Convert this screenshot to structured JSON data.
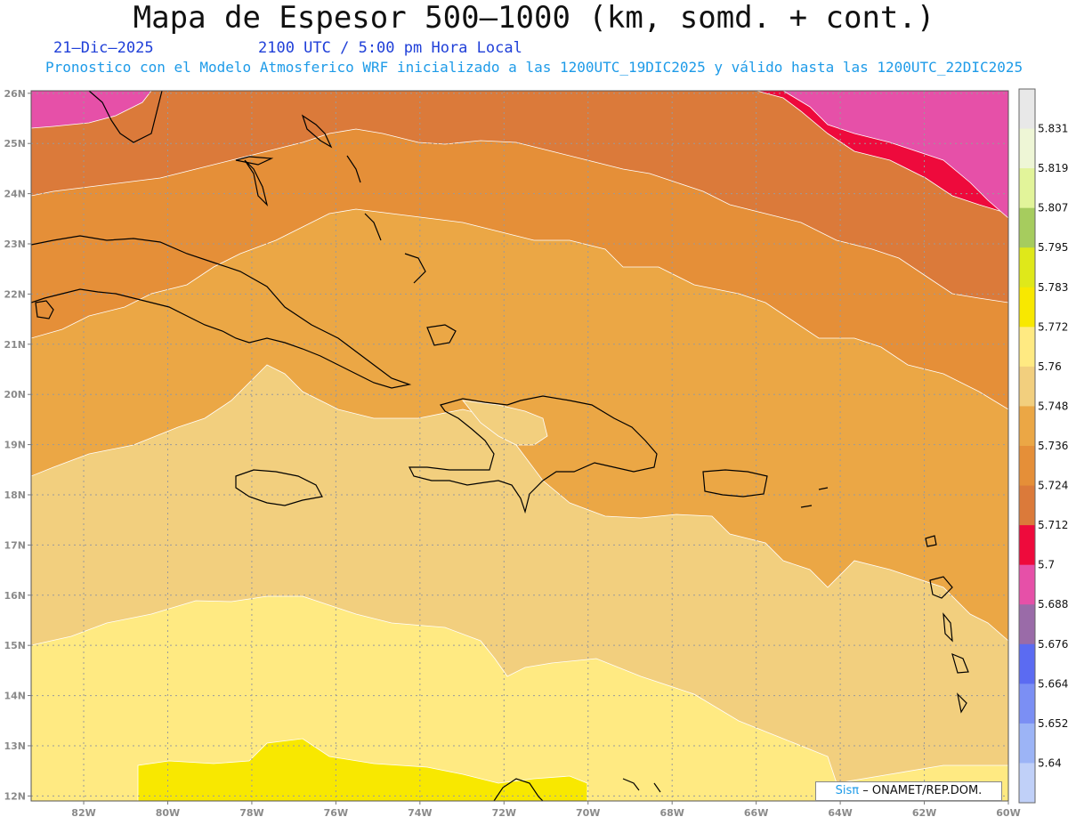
{
  "header": {
    "title": "Mapa de Espesor 500–1000 (km, somd. + cont.)",
    "date": "21–Dic–2025",
    "time": "2100 UTC / 5:00 pm Hora Local",
    "subtitle": "Pronostico con el Modelo Atmosferico WRF inicializado a las 1200UTC_19DIC2025 y válido hasta las  1200UTC_22DIC2025"
  },
  "map": {
    "lat_labels": [
      "26N",
      "25N",
      "24N",
      "23N",
      "22N",
      "21N",
      "20N",
      "19N",
      "18N",
      "17N",
      "16N",
      "15N",
      "14N",
      "13N",
      "12N"
    ],
    "lon_labels": [
      "82W",
      "80W",
      "78W",
      "76W",
      "74W",
      "72W",
      "70W",
      "68W",
      "66W",
      "64W",
      "62W",
      "60W"
    ],
    "lat_values": [
      26,
      25,
      24,
      23,
      22,
      21,
      20,
      19,
      18,
      17,
      16,
      15,
      14,
      13,
      12
    ],
    "lon_values": [
      -82,
      -80,
      -78,
      -76,
      -74,
      -72,
      -70,
      -68,
      -66,
      -64,
      -62,
      -60
    ],
    "lat_range": [
      11.9,
      26.05
    ],
    "lon_range": [
      -83.25,
      -60
    ]
  },
  "colorbar": {
    "levels": [
      "5.831",
      "5.819",
      "5.807",
      "5.795",
      "5.783",
      "5.772",
      "5.76",
      "5.748",
      "5.736",
      "5.724",
      "5.712",
      "5.7",
      "5.688",
      "5.676",
      "5.664",
      "5.652",
      "5.64"
    ],
    "colors": [
      "#e8e8e8",
      "#eef6d6",
      "#e2f49a",
      "#a6cc5e",
      "#dfe81a",
      "#f8e800",
      "#ffea82",
      "#f2cf7e",
      "#eba745",
      "#e58f38",
      "#db7a3a",
      "#ee0a3c",
      "#e650a8",
      "#9a6ba8",
      "#5b6bf2",
      "#7b8ff4",
      "#9cb4f6",
      "#c0d0f8"
    ]
  },
  "credit": {
    "sis": "Sisπ",
    "text": "– ONAMET/REP.DOM."
  }
}
